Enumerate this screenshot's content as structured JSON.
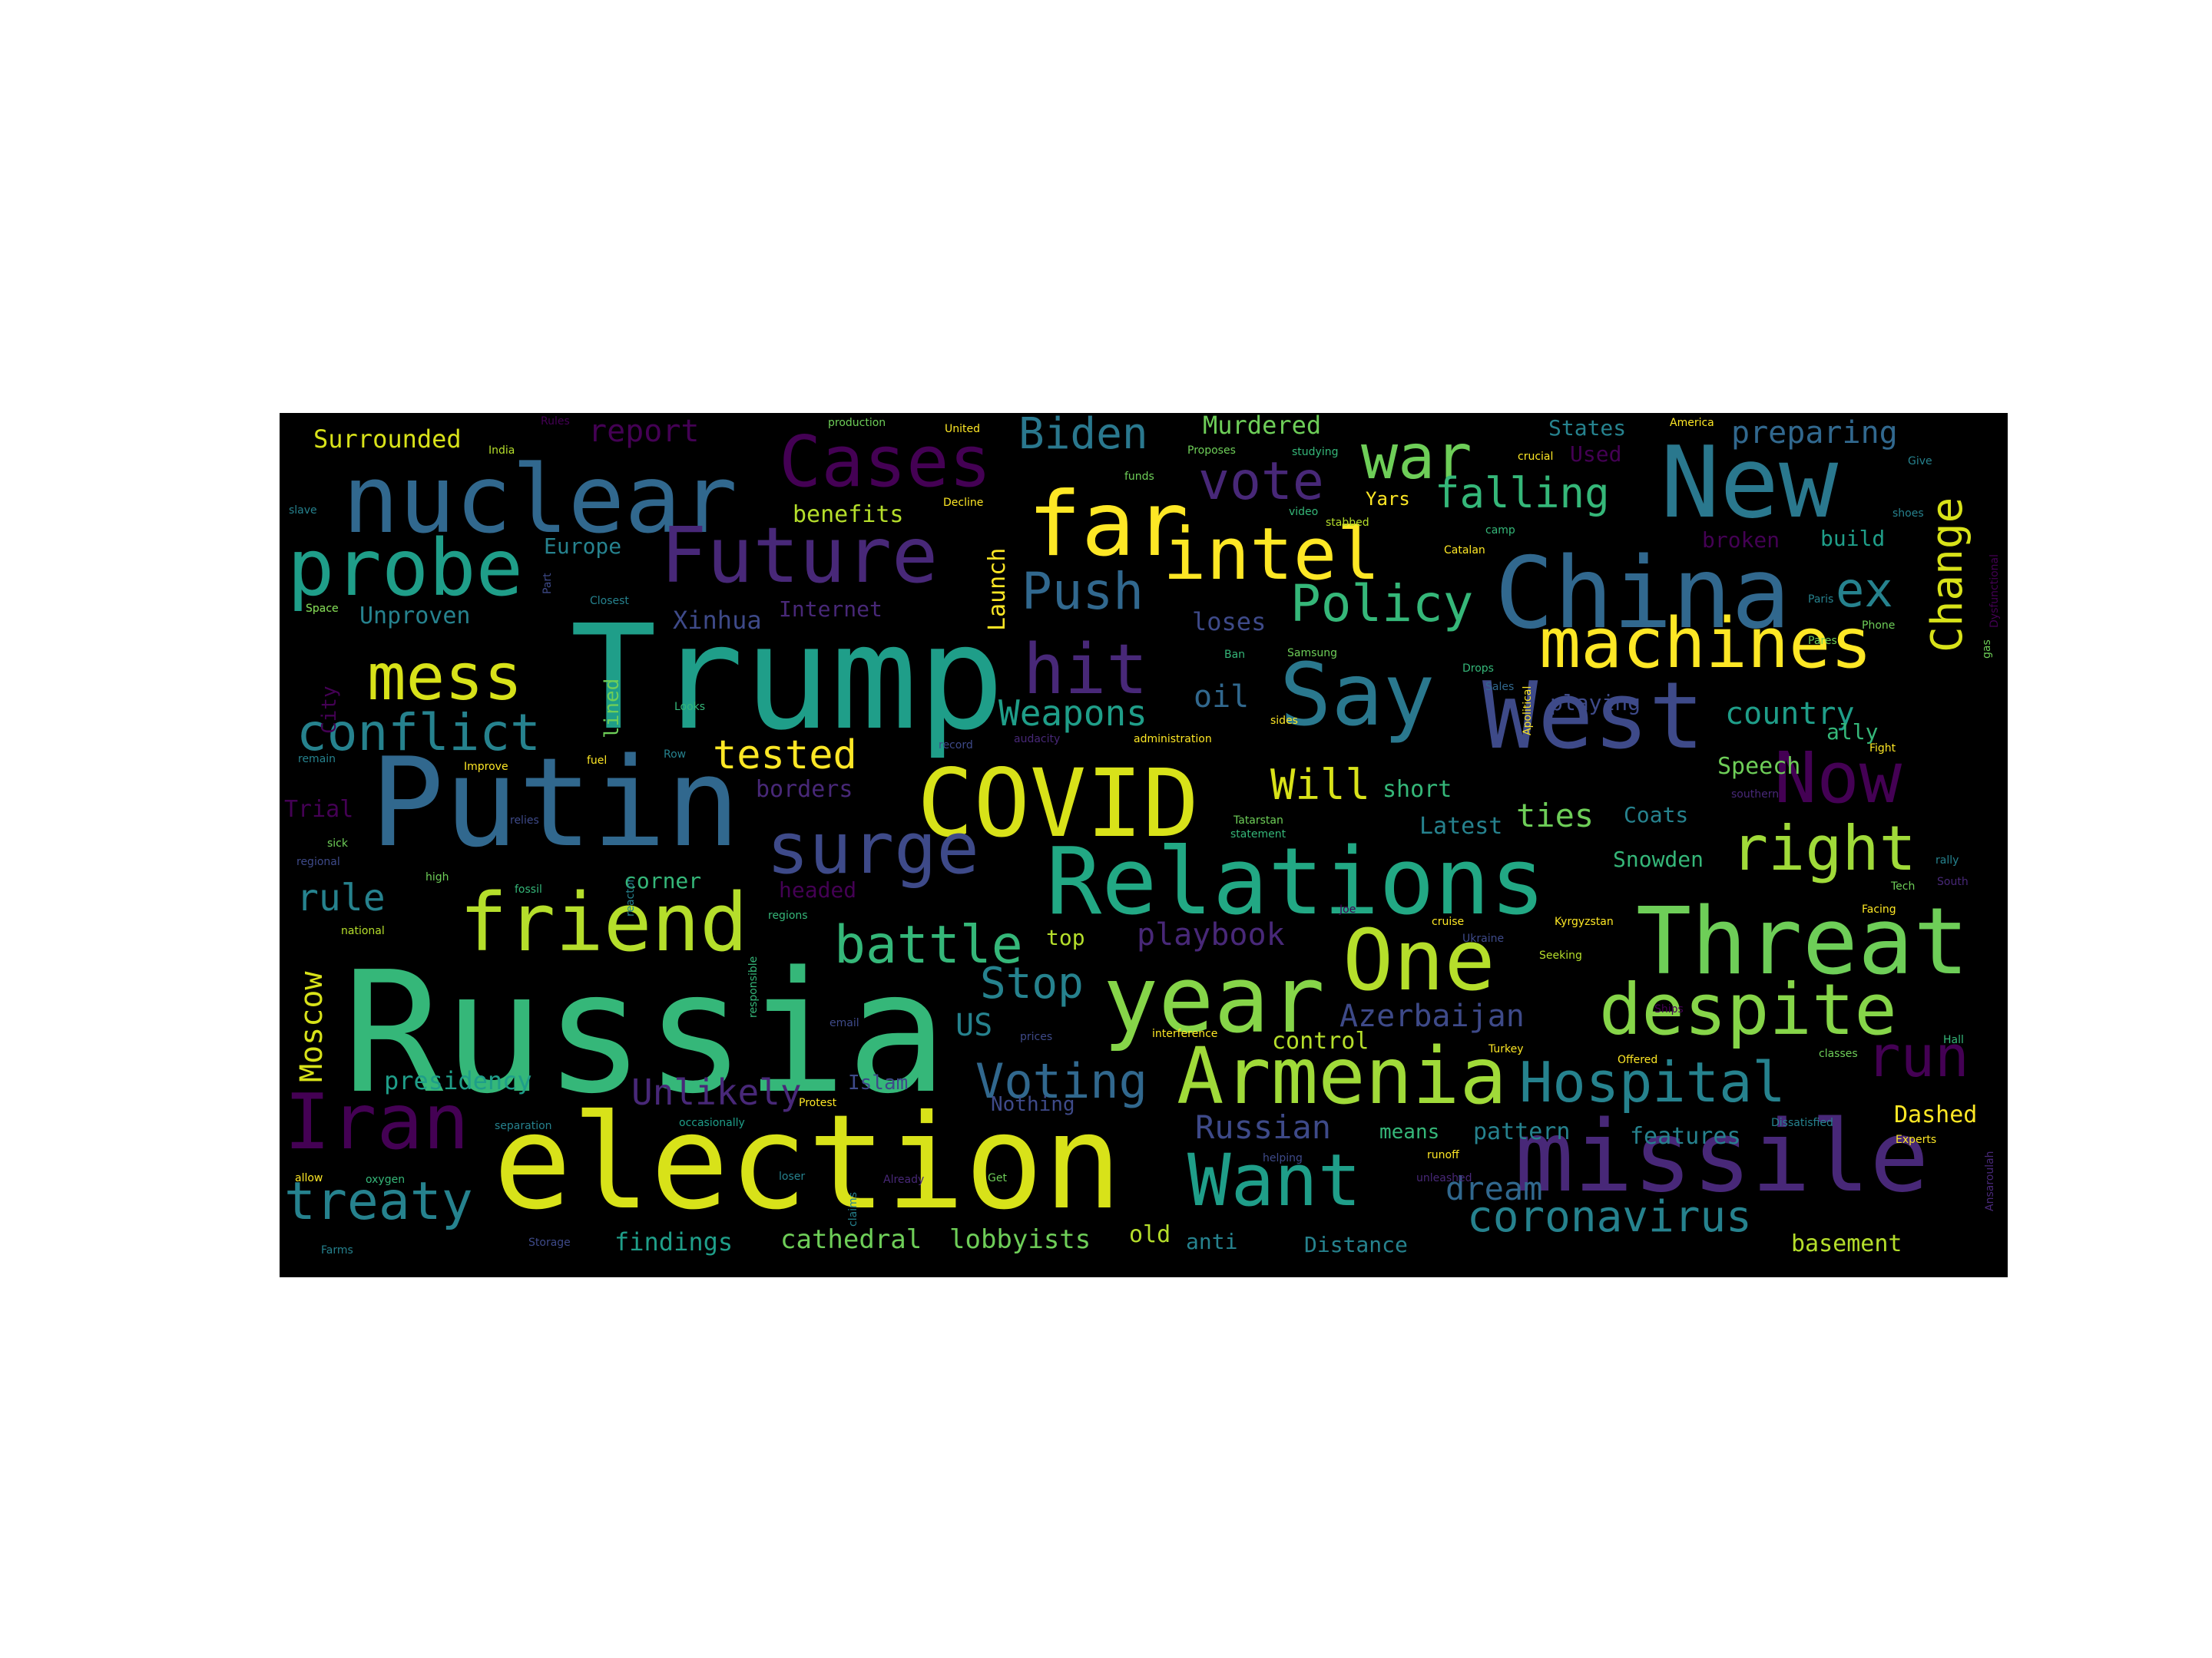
{
  "colors": {
    "background": "#000000",
    "page": "#ffffff",
    "palette": [
      "#440154",
      "#482878",
      "#3e4a89",
      "#31688e",
      "#26828e",
      "#1f9e89",
      "#35b779",
      "#6ece58",
      "#b5de2b",
      "#fde725"
    ]
  },
  "words": [
    {
      "text": "Russia",
      "color": "#35b779"
    },
    {
      "text": "election",
      "color": "#d8e219"
    },
    {
      "text": "Trump",
      "color": "#1f9e89"
    },
    {
      "text": "Putin",
      "color": "#31688e"
    },
    {
      "text": "missile",
      "color": "#482878"
    },
    {
      "text": "Relations",
      "color": "#22a884"
    },
    {
      "text": "China",
      "color": "#31688e"
    },
    {
      "text": "New",
      "color": "#2a788e"
    },
    {
      "text": "COVID",
      "color": "#d8e219"
    },
    {
      "text": "Threat",
      "color": "#6ece58"
    },
    {
      "text": "year",
      "color": "#86d549"
    },
    {
      "text": "Armenia",
      "color": "#a0da39"
    },
    {
      "text": "One",
      "color": "#b5de2b"
    },
    {
      "text": "West",
      "color": "#3e4a89"
    },
    {
      "text": "machines",
      "color": "#fde725"
    },
    {
      "text": "Say",
      "color": "#2a788e"
    },
    {
      "text": "despite",
      "color": "#86d549"
    },
    {
      "text": "nuclear",
      "color": "#31688e"
    },
    {
      "text": "Iran",
      "color": "#440154"
    },
    {
      "text": "friend",
      "color": "#b5de2b"
    },
    {
      "text": "surge",
      "color": "#3e4a89"
    },
    {
      "text": "probe",
      "color": "#1f9e89"
    },
    {
      "text": "Future",
      "color": "#482878"
    },
    {
      "text": "Want",
      "color": "#1f9e89"
    },
    {
      "text": "far",
      "color": "#fde725"
    },
    {
      "text": "intel",
      "color": "#fde725"
    },
    {
      "text": "Cases",
      "color": "#440154"
    },
    {
      "text": "Hospital",
      "color": "#26828e"
    },
    {
      "text": "Now",
      "color": "#440154"
    },
    {
      "text": "war",
      "color": "#6ece58"
    },
    {
      "text": "mess",
      "color": "#d8e219"
    },
    {
      "text": "hit",
      "color": "#482878"
    },
    {
      "text": "treaty",
      "color": "#26828e"
    },
    {
      "text": "right",
      "color": "#a0da39"
    },
    {
      "text": "conflict",
      "color": "#26828e"
    },
    {
      "text": "battle",
      "color": "#35b779"
    },
    {
      "text": "Policy",
      "color": "#35b779"
    },
    {
      "text": "run",
      "color": "#440154"
    },
    {
      "text": "coronavirus",
      "color": "#26828e"
    },
    {
      "text": "Push",
      "color": "#31688e"
    },
    {
      "text": "Voting",
      "color": "#31688e"
    },
    {
      "text": "Stop",
      "color": "#26828e"
    },
    {
      "text": "vote",
      "color": "#482878"
    },
    {
      "text": "Change",
      "color": "#d8e219"
    },
    {
      "text": "Biden",
      "color": "#2a788e"
    },
    {
      "text": "Will",
      "color": "#d8e219"
    },
    {
      "text": "ex",
      "color": "#26828e"
    },
    {
      "text": "tested",
      "color": "#fde725"
    },
    {
      "text": "Weapons",
      "color": "#1f9e89"
    },
    {
      "text": "falling",
      "color": "#35b779"
    },
    {
      "text": "rule",
      "color": "#26828e"
    },
    {
      "text": "Moscow",
      "color": "#d8e219"
    },
    {
      "text": "Azerbaijan",
      "color": "#3e4a89"
    },
    {
      "text": "Unlikely",
      "color": "#482878"
    },
    {
      "text": "Russian",
      "color": "#3e4a89"
    },
    {
      "text": "dream",
      "color": "#31688e"
    },
    {
      "text": "ties",
      "color": "#6ece58"
    },
    {
      "text": "playbook",
      "color": "#482878"
    },
    {
      "text": "report",
      "color": "#440154"
    },
    {
      "text": "preparing",
      "color": "#31688e"
    },
    {
      "text": "country",
      "color": "#1f9e89"
    },
    {
      "text": "oil",
      "color": "#31688e"
    },
    {
      "text": "US",
      "color": "#26828e"
    },
    {
      "text": "Dashed",
      "color": "#fde725"
    },
    {
      "text": "presidency",
      "color": "#1f9e89"
    },
    {
      "text": "cathedral",
      "color": "#6ece58"
    },
    {
      "text": "lobbyists",
      "color": "#6ece58"
    },
    {
      "text": "findings",
      "color": "#1f9e89"
    },
    {
      "text": "basement",
      "color": "#b5de2b"
    },
    {
      "text": "Murdered",
      "color": "#6ece58"
    },
    {
      "text": "Surrounded",
      "color": "#d8e219"
    },
    {
      "text": "benefits",
      "color": "#b5de2b"
    },
    {
      "text": "Unproven",
      "color": "#26828e"
    },
    {
      "text": "Xinhua",
      "color": "#3e4a89"
    },
    {
      "text": "Europe",
      "color": "#26828e"
    },
    {
      "text": "Internet",
      "color": "#482878"
    },
    {
      "text": "Launch",
      "color": "#fde725"
    },
    {
      "text": "loses",
      "color": "#3e4a89"
    },
    {
      "text": "short",
      "color": "#35b779"
    },
    {
      "text": "Latest",
      "color": "#26828e"
    },
    {
      "text": "Speech",
      "color": "#6ece58"
    },
    {
      "text": "Coats",
      "color": "#26828e"
    },
    {
      "text": "Snowden",
      "color": "#35b779"
    },
    {
      "text": "ally",
      "color": "#35b779"
    },
    {
      "text": "Trial",
      "color": "#440154"
    },
    {
      "text": "borders",
      "color": "#482878"
    },
    {
      "text": "corner",
      "color": "#35b779"
    },
    {
      "text": "headed",
      "color": "#440154"
    },
    {
      "text": "top",
      "color": "#b5de2b"
    },
    {
      "text": "control",
      "color": "#b5de2b"
    },
    {
      "text": "pattern",
      "color": "#26828e"
    },
    {
      "text": "means",
      "color": "#35b779"
    },
    {
      "text": "features",
      "color": "#26828e"
    },
    {
      "text": "Nothing",
      "color": "#3e4a89"
    },
    {
      "text": "Islam",
      "color": "#3e4a89"
    },
    {
      "text": "old",
      "color": "#b5de2b"
    },
    {
      "text": "anti",
      "color": "#26828e"
    },
    {
      "text": "Distance",
      "color": "#26828e"
    },
    {
      "text": "States",
      "color": "#26828e"
    },
    {
      "text": "Used",
      "color": "#440154"
    },
    {
      "text": "Yars",
      "color": "#fde725"
    },
    {
      "text": "broken",
      "color": "#440154"
    },
    {
      "text": "build",
      "color": "#1f9e89"
    },
    {
      "text": "playing",
      "color": "#3e4a89"
    },
    {
      "text": "City",
      "color": "#440154"
    },
    {
      "text": "lined",
      "color": "#6ece58"
    },
    {
      "text": "production",
      "color": "#6ece58"
    },
    {
      "text": "Decline",
      "color": "#fde725"
    },
    {
      "text": "crucial",
      "color": "#fde725"
    },
    {
      "text": "America",
      "color": "#fde725"
    },
    {
      "text": "Space",
      "color": "#fde725"
    },
    {
      "text": "Closest",
      "color": "#26828e"
    },
    {
      "text": "Samsung",
      "color": "#6ece58"
    },
    {
      "text": "stabbed",
      "color": "#b5de2b"
    },
    {
      "text": "camp",
      "color": "#35b779"
    },
    {
      "text": "studying",
      "color": "#35b779"
    },
    {
      "text": "Proposes",
      "color": "#6ece58"
    },
    {
      "text": "India",
      "color": "#b5de2b"
    },
    {
      "text": "slave",
      "color": "#26828e"
    },
    {
      "text": "United",
      "color": "#fde725"
    },
    {
      "text": "funds",
      "color": "#6ece58"
    },
    {
      "text": "Rules",
      "color": "#440154"
    },
    {
      "text": "Paris",
      "color": "#26828e"
    },
    {
      "text": "video",
      "color": "#35b779"
    },
    {
      "text": "Catalan",
      "color": "#fde725"
    },
    {
      "text": "Apolitical",
      "color": "#fde725"
    },
    {
      "text": "Drops",
      "color": "#35b779"
    },
    {
      "text": "fuel",
      "color": "#fde725"
    },
    {
      "text": "Tatarstan",
      "color": "#6ece58"
    },
    {
      "text": "statement",
      "color": "#35b779"
    },
    {
      "text": "Phone",
      "color": "#6ece58"
    },
    {
      "text": "Pares",
      "color": "#6ece58"
    },
    {
      "text": "Dysfunctional",
      "color": "#440154"
    },
    {
      "text": "shoes",
      "color": "#26828e"
    },
    {
      "text": "Give",
      "color": "#26828e"
    },
    {
      "text": "southern",
      "color": "#482878"
    },
    {
      "text": "Kyrgyzstan",
      "color": "#fde725"
    },
    {
      "text": "cruise",
      "color": "#fde725"
    },
    {
      "text": "Seeking",
      "color": "#b5de2b"
    },
    {
      "text": "Tech",
      "color": "#6ece58"
    },
    {
      "text": "Facing",
      "color": "#fde725"
    },
    {
      "text": "South",
      "color": "#482878"
    },
    {
      "text": "rally",
      "color": "#26828e"
    },
    {
      "text": "Hall",
      "color": "#35b779"
    },
    {
      "text": "classes",
      "color": "#6ece58"
    },
    {
      "text": "Turkey",
      "color": "#fde725"
    },
    {
      "text": "Offered",
      "color": "#fde725"
    },
    {
      "text": "Experts",
      "color": "#fde725"
    },
    {
      "text": "Dissatisfied",
      "color": "#26828e"
    },
    {
      "text": "runoff",
      "color": "#fde725"
    },
    {
      "text": "unleashed",
      "color": "#482878"
    },
    {
      "text": "Ansaroulah",
      "color": "#482878"
    },
    {
      "text": "helping",
      "color": "#3e4a89"
    },
    {
      "text": "interference",
      "color": "#fde725"
    },
    {
      "text": "prices",
      "color": "#3e4a89"
    },
    {
      "text": "responsible",
      "color": "#35b779"
    },
    {
      "text": "separation",
      "color": "#26828e"
    },
    {
      "text": "occasionally",
      "color": "#1f9e89"
    },
    {
      "text": "Protest",
      "color": "#fde725"
    },
    {
      "text": "Already",
      "color": "#482878"
    },
    {
      "text": "Get",
      "color": "#6ece58"
    },
    {
      "text": "loser",
      "color": "#26828e"
    },
    {
      "text": "claims",
      "color": "#26828e"
    },
    {
      "text": "Storage",
      "color": "#3e4a89"
    },
    {
      "text": "oxygen",
      "color": "#35b779"
    },
    {
      "text": "allow",
      "color": "#fde725"
    },
    {
      "text": "Farms",
      "color": "#26828e"
    },
    {
      "text": "fossil",
      "color": "#35b779"
    },
    {
      "text": "regional",
      "color": "#3e4a89"
    },
    {
      "text": "national",
      "color": "#b5de2b"
    },
    {
      "text": "regions",
      "color": "#35b779"
    },
    {
      "text": "high",
      "color": "#6ece58"
    },
    {
      "text": "reactor",
      "color": "#26828e"
    },
    {
      "text": "sick",
      "color": "#6ece58"
    },
    {
      "text": "relies",
      "color": "#3e4a89"
    },
    {
      "text": "Improve",
      "color": "#fde725"
    },
    {
      "text": "Looks",
      "color": "#35b779"
    },
    {
      "text": "Row",
      "color": "#26828e"
    },
    {
      "text": "record",
      "color": "#3e4a89"
    },
    {
      "text": "audacity",
      "color": "#482878"
    },
    {
      "text": "administration",
      "color": "#fde725"
    },
    {
      "text": "remain",
      "color": "#26828e"
    },
    {
      "text": "Ban",
      "color": "#35b779"
    },
    {
      "text": "sides",
      "color": "#fde725"
    },
    {
      "text": "Sales",
      "color": "#31688e"
    },
    {
      "text": "Ships",
      "color": "#440154"
    },
    {
      "text": "Part",
      "color": "#3e4a89"
    },
    {
      "text": "Space",
      "color": "#6ece58"
    },
    {
      "text": "gas",
      "color": "#6ece58"
    },
    {
      "text": "Ukraine",
      "color": "#3e4a89"
    },
    {
      "text": "email",
      "color": "#3e4a89"
    },
    {
      "text": "Joe",
      "color": "#440154"
    },
    {
      "text": "Fight",
      "color": "#fde725"
    }
  ]
}
